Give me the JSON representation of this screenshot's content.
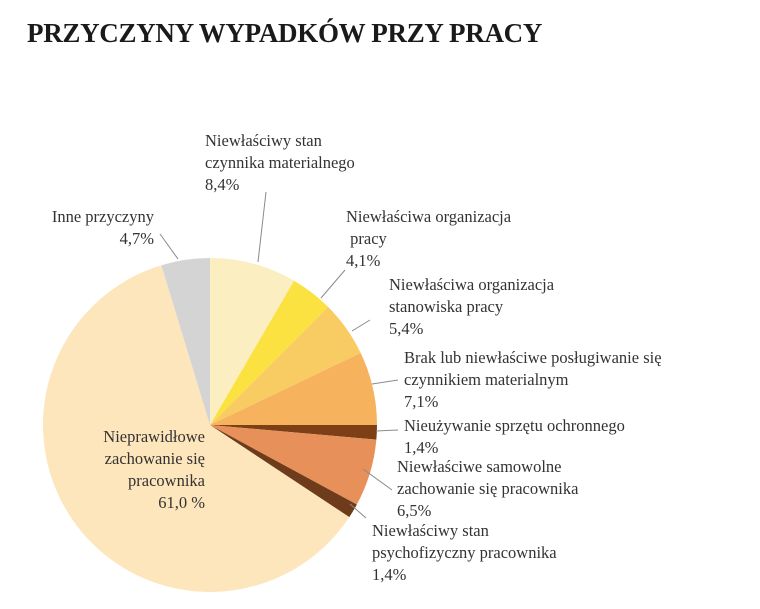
{
  "chart_data": {
    "type": "pie",
    "title": "PRZYCZYNY WYPADKÓW PRZY PRACY",
    "slices": [
      {
        "lines": [
          "Niewłaściwy stan",
          "czynnika materialnego",
          "8,4%"
        ],
        "value": 8.4,
        "color": "#fbeec0"
      },
      {
        "lines": [
          "Niewłaściwa organizacja",
          " pracy",
          "4,1%"
        ],
        "value": 4.1,
        "color": "#fbe241"
      },
      {
        "lines": [
          "Niewłaściwa organizacja",
          "stanowiska pracy",
          "5,4%"
        ],
        "value": 5.4,
        "color": "#f8cc63"
      },
      {
        "lines": [
          "Brak lub niewłaściwe posługiwanie się",
          "czynnikiem materialnym",
          "7,1%"
        ],
        "value": 7.1,
        "color": "#f6b25c"
      },
      {
        "lines": [
          "Nieużywanie sprzętu ochronnego",
          "1,4%"
        ],
        "value": 1.4,
        "color": "#7d3f15"
      },
      {
        "lines": [
          "Niewłaściwe samowolne",
          "zachowanie się pracownika",
          "6,5%"
        ],
        "value": 6.5,
        "color": "#e8905a"
      },
      {
        "lines": [
          "Niewłaściwy stan",
          "psychofizyczny pracownika",
          "1,4%"
        ],
        "value": 1.4,
        "color": "#6e3c1a"
      },
      {
        "lines": [
          "Nieprawidłowe",
          "zachowanie się",
          "pracownika",
          "61,0 %"
        ],
        "value": 61.0,
        "color": "#fde5bc"
      },
      {
        "lines": [
          "Inne przyczyny",
          "4,7%"
        ],
        "value": 4.7,
        "color": "#d4d4d4"
      }
    ]
  }
}
